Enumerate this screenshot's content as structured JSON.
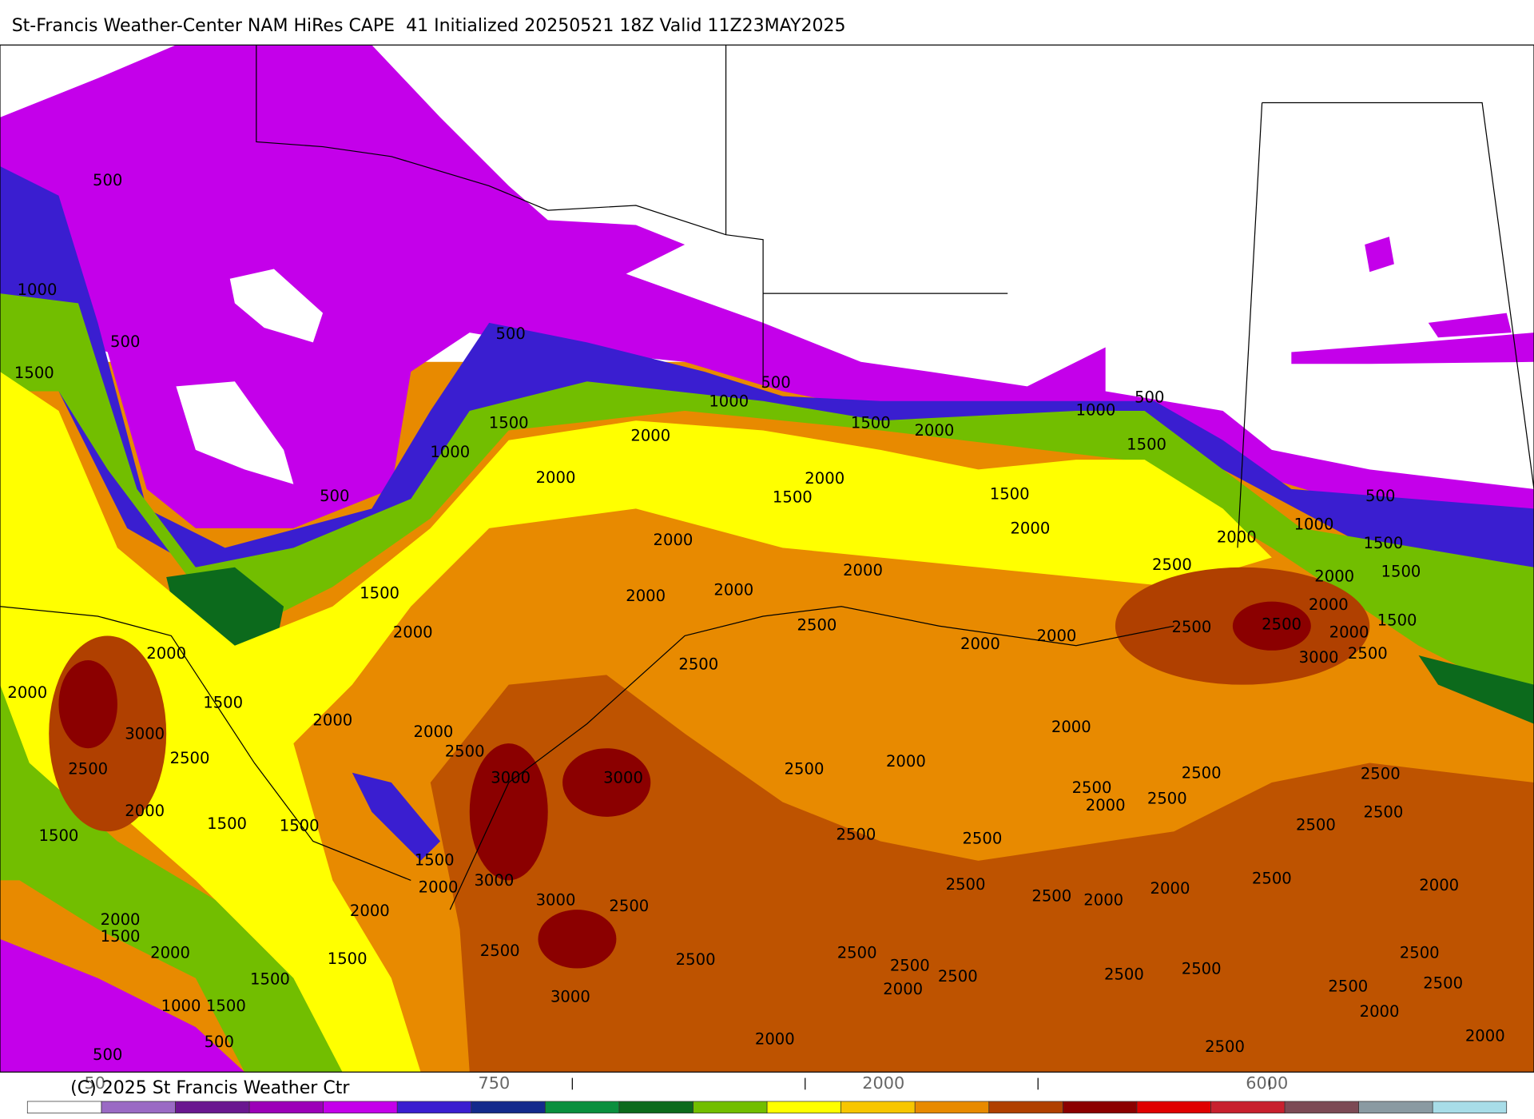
{
  "header": {
    "title": "St-Francis Weather-Center NAM HiRes CAPE  41 Initialized 20250521 18Z Valid 11Z23MAY2025"
  },
  "map": {
    "contour_labels": [
      500,
      1000,
      500,
      1500,
      500,
      1000,
      500,
      1500,
      2000,
      2000,
      500,
      1000,
      1500,
      2000,
      2000,
      1500,
      1000,
      500,
      1500,
      1500,
      2000,
      2000,
      2000,
      2000,
      2000,
      1500,
      2000,
      2500,
      2000,
      2000,
      1500,
      2500,
      2000,
      2000,
      2000,
      1000,
      500,
      1500,
      2000,
      1500,
      2000,
      1500,
      2000,
      2500,
      3000,
      2500,
      2500,
      2500,
      3000,
      2500,
      2500,
      2000,
      2000,
      2500,
      3000,
      3000,
      2500,
      2000,
      2000,
      2000,
      1500,
      1500,
      1500,
      1500,
      2000,
      3000,
      3000,
      2500,
      2000,
      2000,
      1500,
      2000,
      1500,
      1500,
      2500,
      2500,
      2500,
      2500,
      2500,
      2500,
      2500,
      2000,
      2500,
      2000,
      2500,
      2500,
      2500,
      2500,
      2500,
      2000,
      2500,
      2000,
      2500,
      2500,
      2500,
      2000,
      2000,
      2500,
      2500,
      2500,
      2000,
      2500,
      3000,
      2000,
      2500,
      1000,
      1500,
      500,
      500
    ]
  },
  "colorbar": {
    "colors": [
      "#ffffff",
      "#9a6ac4",
      "#6a1790",
      "#9c00b8",
      "#c400ea",
      "#3a1ed0",
      "#142a8c",
      "#0a8f3e",
      "#0c6a1c",
      "#72be00",
      "#ffff00",
      "#f7c600",
      "#e88a00",
      "#b04000",
      "#8b0000",
      "#e00000",
      "#c8202e",
      "#7c4a55",
      "#8a9aa2",
      "#a8dde8"
    ],
    "labels": [
      50,
      750,
      2000,
      6000
    ]
  },
  "footer": {
    "copyright": "(C) 2025 St Francis Weather Ctr"
  }
}
